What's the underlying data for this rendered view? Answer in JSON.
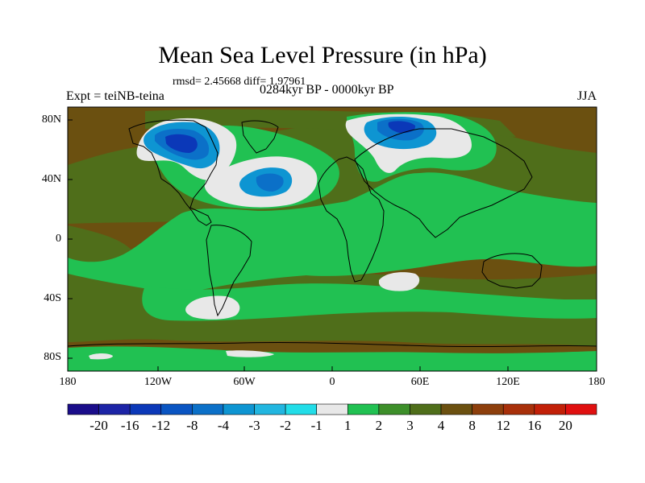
{
  "title": "Mean Sea Level Pressure (in hPa)",
  "stats": "rmsd= 2.45668 diff= 1.97961",
  "experiment": "Expt = teiNB-teina",
  "period": "0284kyr BP - 0000kyr BP",
  "season": "JJA",
  "lat_labels": [
    "80N",
    "40N",
    "0",
    "40S",
    "80S"
  ],
  "lon_labels": [
    "180",
    "120W",
    "60W",
    "0",
    "60E",
    "120E",
    "180"
  ],
  "colorbar": {
    "labels": [
      "-20",
      "-16",
      "-12",
      "-8",
      "-4",
      "-3",
      "-2",
      "-1",
      "1",
      "2",
      "3",
      "4",
      "8",
      "12",
      "16",
      "20"
    ],
    "colors": [
      "#1a0d8a",
      "#1c24a6",
      "#0b38b8",
      "#0a55c2",
      "#0b70c8",
      "#0e95d2",
      "#22b6e0",
      "#22dde8",
      "#e8e8e8",
      "#21c152",
      "#3d8f2a",
      "#4f6e1a",
      "#6b5010",
      "#8d3f0c",
      "#a8300a",
      "#c22008",
      "#e01010"
    ]
  },
  "colors": {
    "brown_bg": "#6b5010",
    "olive": "#4f6e1a",
    "green": "#21c152",
    "white": "#e8e8e8",
    "blue_light": "#0e95d2",
    "blue_mid": "#0b70c8",
    "blue_dark": "#0b38b8"
  }
}
